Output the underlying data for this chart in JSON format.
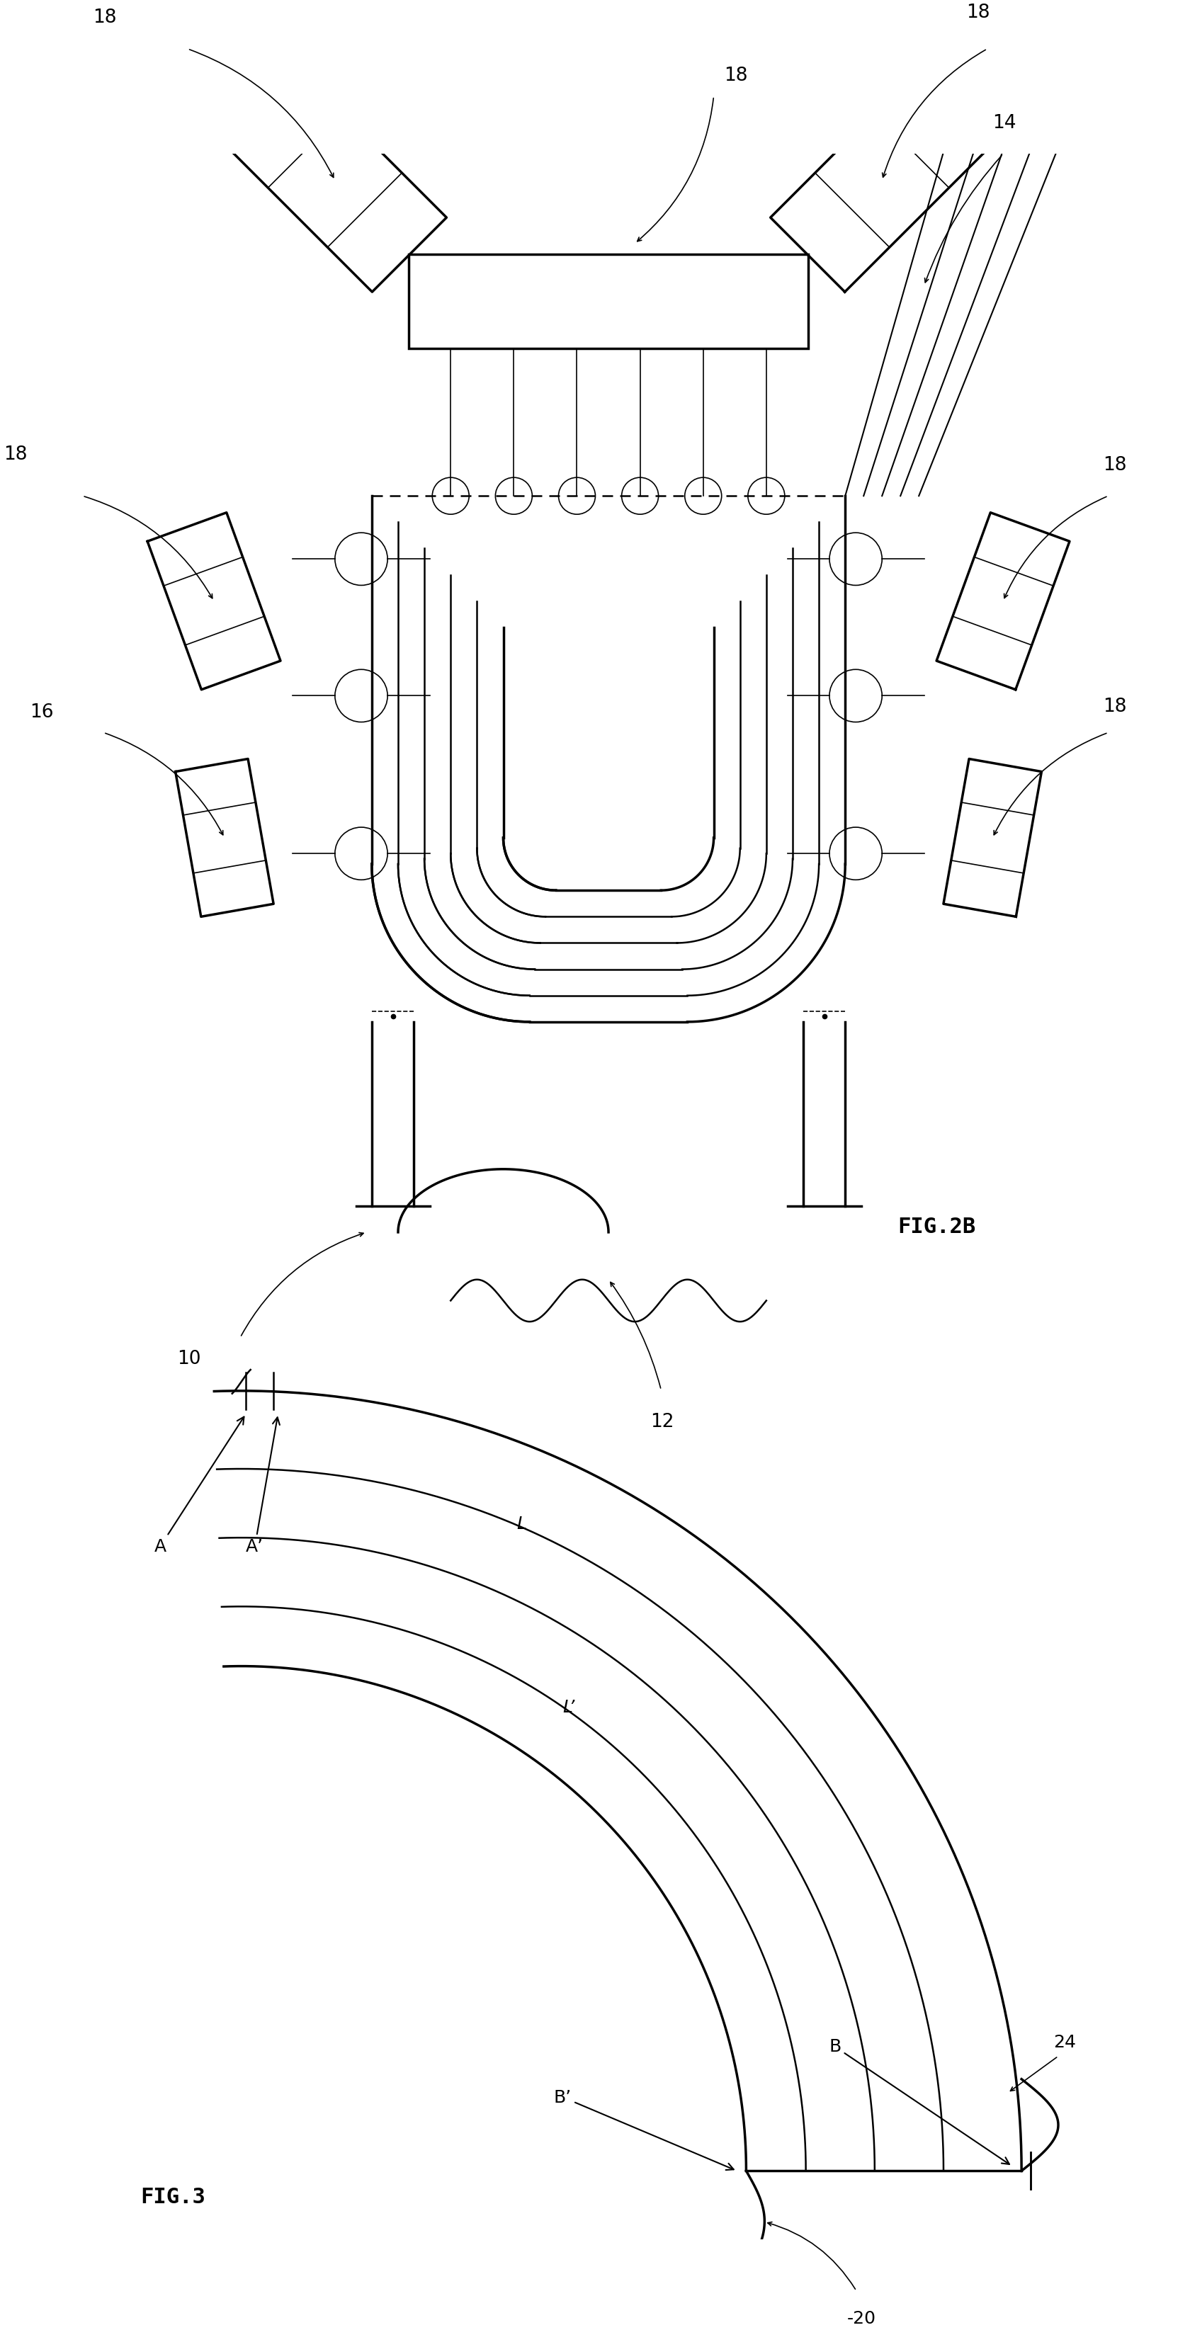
{
  "colors": {
    "bg": "#ffffff",
    "fg": "#000000"
  },
  "lw_thick": 2.5,
  "lw_med": 1.8,
  "lw_thin": 1.2,
  "fig2b_label": "FIG.2B",
  "fig3_label": "FIG.3",
  "labels": {
    "18": "18",
    "14": "14",
    "16": "16",
    "10": "10",
    "12": "12",
    "24": "24",
    "20": "20",
    "L": "L",
    "Lp": "L’",
    "B": "B",
    "Bp": "B’",
    "A": "A",
    "Ap": "A’"
  }
}
